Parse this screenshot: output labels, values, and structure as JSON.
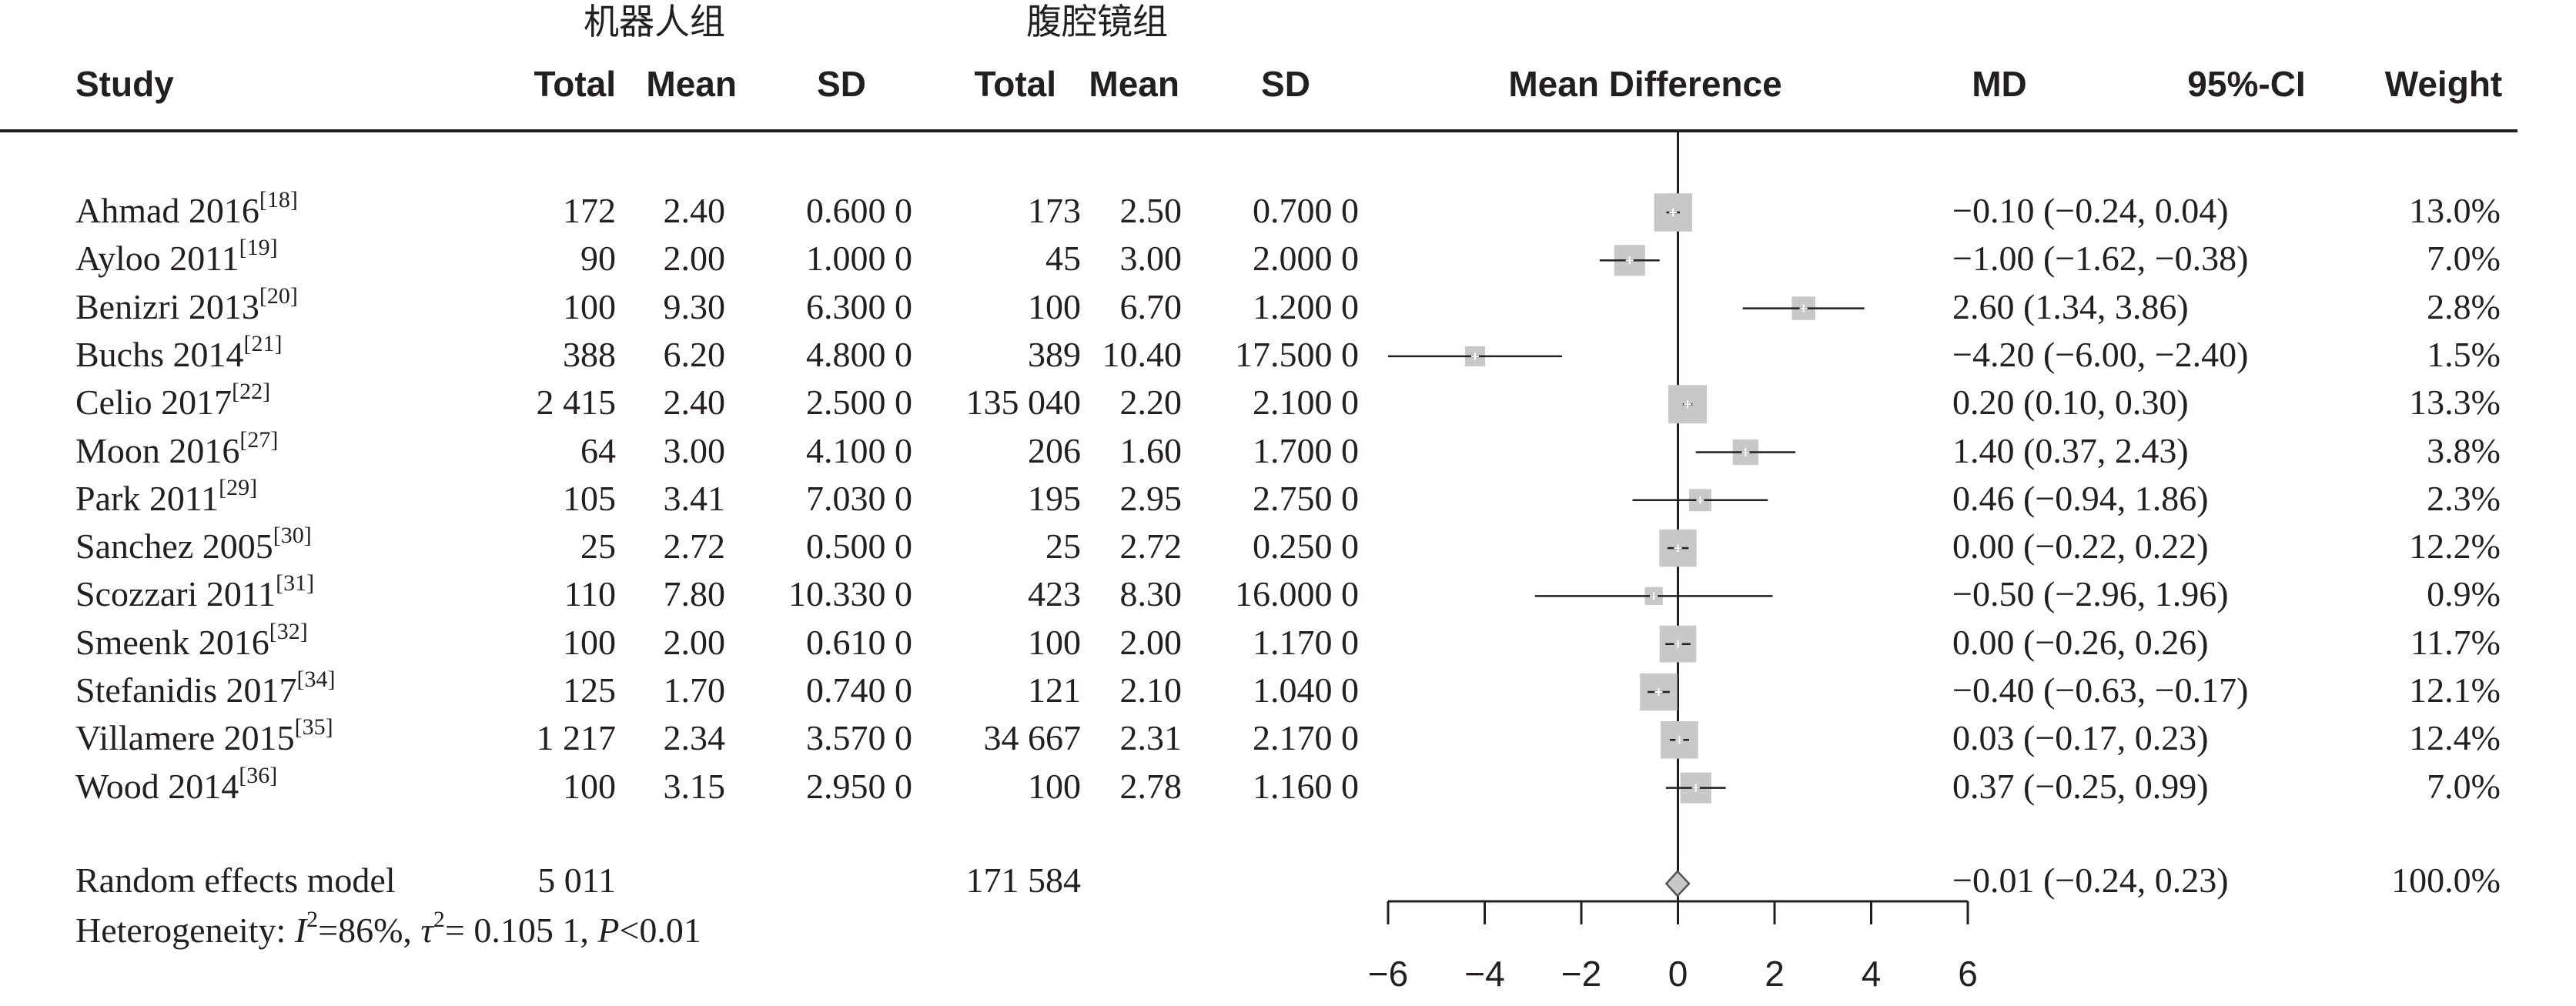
{
  "group_labels": {
    "robot": "机器人组",
    "lap": "腹腔镜组"
  },
  "headers": {
    "study": "Study",
    "total1": "Total",
    "mean1": "Mean",
    "sd1": "SD",
    "total2": "Total",
    "mean2": "Mean",
    "sd2": "SD",
    "plot": "Mean Difference",
    "md": "MD",
    "ci": "95%-CI",
    "weight": "Weight"
  },
  "rows": [
    {
      "study": "Ahmad 2016",
      "ref": "[18]",
      "t1": "172",
      "m1": "2.40",
      "s1": "0.600 0",
      "t2": "173",
      "m2": "2.50",
      "s2": "0.700 0",
      "md": "−0.10 (−0.24, 0.04)",
      "w": "13.0%"
    },
    {
      "study": "Ayloo 2011",
      "ref": "[19]",
      "t1": "90",
      "m1": "2.00",
      "s1": "1.000 0",
      "t2": "45",
      "m2": "3.00",
      "s2": "2.000 0",
      "md": "−1.00 (−1.62, −0.38)",
      "w": "7.0%"
    },
    {
      "study": "Benizri 2013",
      "ref": "[20]",
      "t1": "100",
      "m1": "9.30",
      "s1": "6.300 0",
      "t2": "100",
      "m2": "6.70",
      "s2": "1.200 0",
      "md": "2.60 (1.34, 3.86)",
      "w": "2.8%"
    },
    {
      "study": "Buchs 2014",
      "ref": "[21]",
      "t1": "388",
      "m1": "6.20",
      "s1": "4.800 0",
      "t2": "389",
      "m2": "10.40",
      "s2": "17.500 0",
      "md": "−4.20 (−6.00, −2.40)",
      "w": "1.5%"
    },
    {
      "study": "Celio 2017",
      "ref": "[22]",
      "t1": "2 415",
      "m1": "2.40",
      "s1": "2.500 0",
      "t2": "135 040",
      "m2": "2.20",
      "s2": "2.100 0",
      "md": "0.20 (0.10, 0.30)",
      "w": "13.3%"
    },
    {
      "study": "Moon 2016",
      "ref": "[27]",
      "t1": "64",
      "m1": "3.00",
      "s1": "4.100 0",
      "t2": "206",
      "m2": "1.60",
      "s2": "1.700 0",
      "md": "1.40 (0.37, 2.43)",
      "w": "3.8%"
    },
    {
      "study": "Park 2011",
      "ref": "[29]",
      "t1": "105",
      "m1": "3.41",
      "s1": "7.030 0",
      "t2": "195",
      "m2": "2.95",
      "s2": "2.750 0",
      "md": "0.46 (−0.94, 1.86)",
      "w": "2.3%"
    },
    {
      "study": "Sanchez 2005",
      "ref": "[30]",
      "t1": "25",
      "m1": "2.72",
      "s1": "0.500 0",
      "t2": "25",
      "m2": "2.72",
      "s2": "0.250 0",
      "md": "0.00 (−0.22, 0.22)",
      "w": "12.2%"
    },
    {
      "study": "Scozzari 2011",
      "ref": "[31]",
      "t1": "110",
      "m1": "7.80",
      "s1": "10.330 0",
      "t2": "423",
      "m2": "8.30",
      "s2": "16.000 0",
      "md": "−0.50 (−2.96, 1.96)",
      "w": "0.9%"
    },
    {
      "study": "Smeenk 2016",
      "ref": "[32]",
      "t1": "100",
      "m1": "2.00",
      "s1": "0.610 0",
      "t2": "100",
      "m2": "2.00",
      "s2": "1.170 0",
      "md": "0.00 (−0.26, 0.26)",
      "w": "11.7%"
    },
    {
      "study": "Stefanidis 2017",
      "ref": "[34]",
      "t1": "125",
      "m1": "1.70",
      "s1": "0.740 0",
      "t2": "121",
      "m2": "2.10",
      "s2": "1.040 0",
      "md": "−0.40 (−0.63, −0.17)",
      "w": "12.1%"
    },
    {
      "study": "Villamere 2015",
      "ref": "[35]",
      "t1": "1 217",
      "m1": "2.34",
      "s1": "3.570 0",
      "t2": "34 667",
      "m2": "2.31",
      "s2": "2.170 0",
      "md": "0.03 (−0.17, 0.23)",
      "w": "12.4%"
    },
    {
      "study": "Wood 2014",
      "ref": "[36]",
      "t1": "100",
      "m1": "3.15",
      "s1": "2.950 0",
      "t2": "100",
      "m2": "2.78",
      "s2": "1.160 0",
      "md": "0.37 (−0.25, 0.99)",
      "w": "7.0%"
    }
  ],
  "summary": {
    "label": "Random effects model",
    "t1": "5 011",
    "t2": "171 584",
    "md": "−0.01 (−0.24, 0.23)",
    "w": "100.0%"
  },
  "heterogeneity": {
    "prefix": "Heterogeneity: ",
    "i2_sym": "I",
    "i2": "=86%, ",
    "tau_sym": "τ",
    "tau": "= 0.105 1, ",
    "p_sym": "P",
    "p": "<0.01"
  },
  "chart_data": {
    "type": "forest",
    "categories": [
      "Ahmad 2016",
      "Ayloo 2011",
      "Benizri 2013",
      "Buchs 2014",
      "Celio 2017",
      "Moon 2016",
      "Park 2011",
      "Sanchez 2005",
      "Scozzari 2011",
      "Smeenk 2016",
      "Stefanidis 2017",
      "Villamere 2015",
      "Wood 2014"
    ],
    "md": [
      -0.1,
      -1.0,
      2.6,
      -4.2,
      0.2,
      1.4,
      0.46,
      0.0,
      -0.5,
      0.0,
      -0.4,
      0.03,
      0.37
    ],
    "lower": [
      -0.24,
      -1.62,
      1.34,
      -6.0,
      0.1,
      0.37,
      -0.94,
      -0.22,
      -2.96,
      -0.26,
      -0.63,
      -0.17,
      -0.25
    ],
    "upper": [
      0.04,
      -0.38,
      3.86,
      -2.4,
      0.3,
      2.43,
      1.86,
      0.22,
      1.96,
      0.26,
      -0.17,
      0.23,
      0.99
    ],
    "weight": [
      13.0,
      7.0,
      2.8,
      1.5,
      13.3,
      3.8,
      2.3,
      12.2,
      0.9,
      11.7,
      12.1,
      12.4,
      7.0
    ],
    "summary": {
      "md": -0.01,
      "lower": -0.24,
      "upper": 0.23
    },
    "xlim": [
      -6,
      6
    ],
    "xticks": [
      -6,
      -4,
      -2,
      0,
      2,
      4,
      6
    ],
    "xlabel": "",
    "title": "Mean Difference",
    "square_color": "#c8c8c8",
    "line_color": "#231f20"
  }
}
